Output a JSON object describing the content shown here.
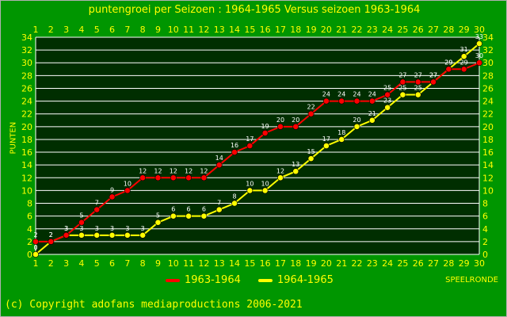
{
  "colors": {
    "background": "#009600",
    "plot_background": "#002e00",
    "grid": "#ffffff",
    "text": "#ffff00",
    "series_1963": "#ff0000",
    "series_1964": "#ffff00"
  },
  "footer": "(c) Copyright adofans mediaproductions 2006-2021",
  "chart_data": {
    "type": "line",
    "title": "puntengroei per Seizoen : 1964-1965 Versus seizoen 1963-1964",
    "xlabel": "SPEELRONDE",
    "ylabel": "PUNTEN",
    "x": [
      1,
      2,
      3,
      4,
      5,
      6,
      7,
      8,
      9,
      10,
      11,
      12,
      13,
      14,
      15,
      16,
      17,
      18,
      19,
      20,
      21,
      22,
      23,
      24,
      25,
      26,
      27,
      28,
      29,
      30
    ],
    "xlim": [
      1,
      30
    ],
    "ylim": [
      0,
      34
    ],
    "y_ticks": [
      0,
      2,
      4,
      6,
      8,
      10,
      12,
      14,
      16,
      18,
      20,
      22,
      24,
      26,
      28,
      30,
      32,
      34
    ],
    "grid": true,
    "legend_position": "bottom",
    "series": [
      {
        "name": "1963-1964",
        "color": "#ff0000",
        "values": [
          2,
          2,
          3,
          5,
          7,
          9,
          10,
          12,
          12,
          12,
          12,
          12,
          14,
          16,
          17,
          19,
          20,
          20,
          22,
          24,
          24,
          24,
          24,
          25,
          27,
          27,
          27,
          29,
          29,
          30
        ]
      },
      {
        "name": "1964-1965",
        "color": "#ffff00",
        "values": [
          0,
          2,
          3,
          3,
          3,
          3,
          3,
          3,
          5,
          6,
          6,
          6,
          7,
          8,
          10,
          10,
          12,
          13,
          15,
          17,
          18,
          20,
          21,
          23,
          25,
          25,
          27,
          29,
          31,
          33
        ]
      }
    ]
  }
}
